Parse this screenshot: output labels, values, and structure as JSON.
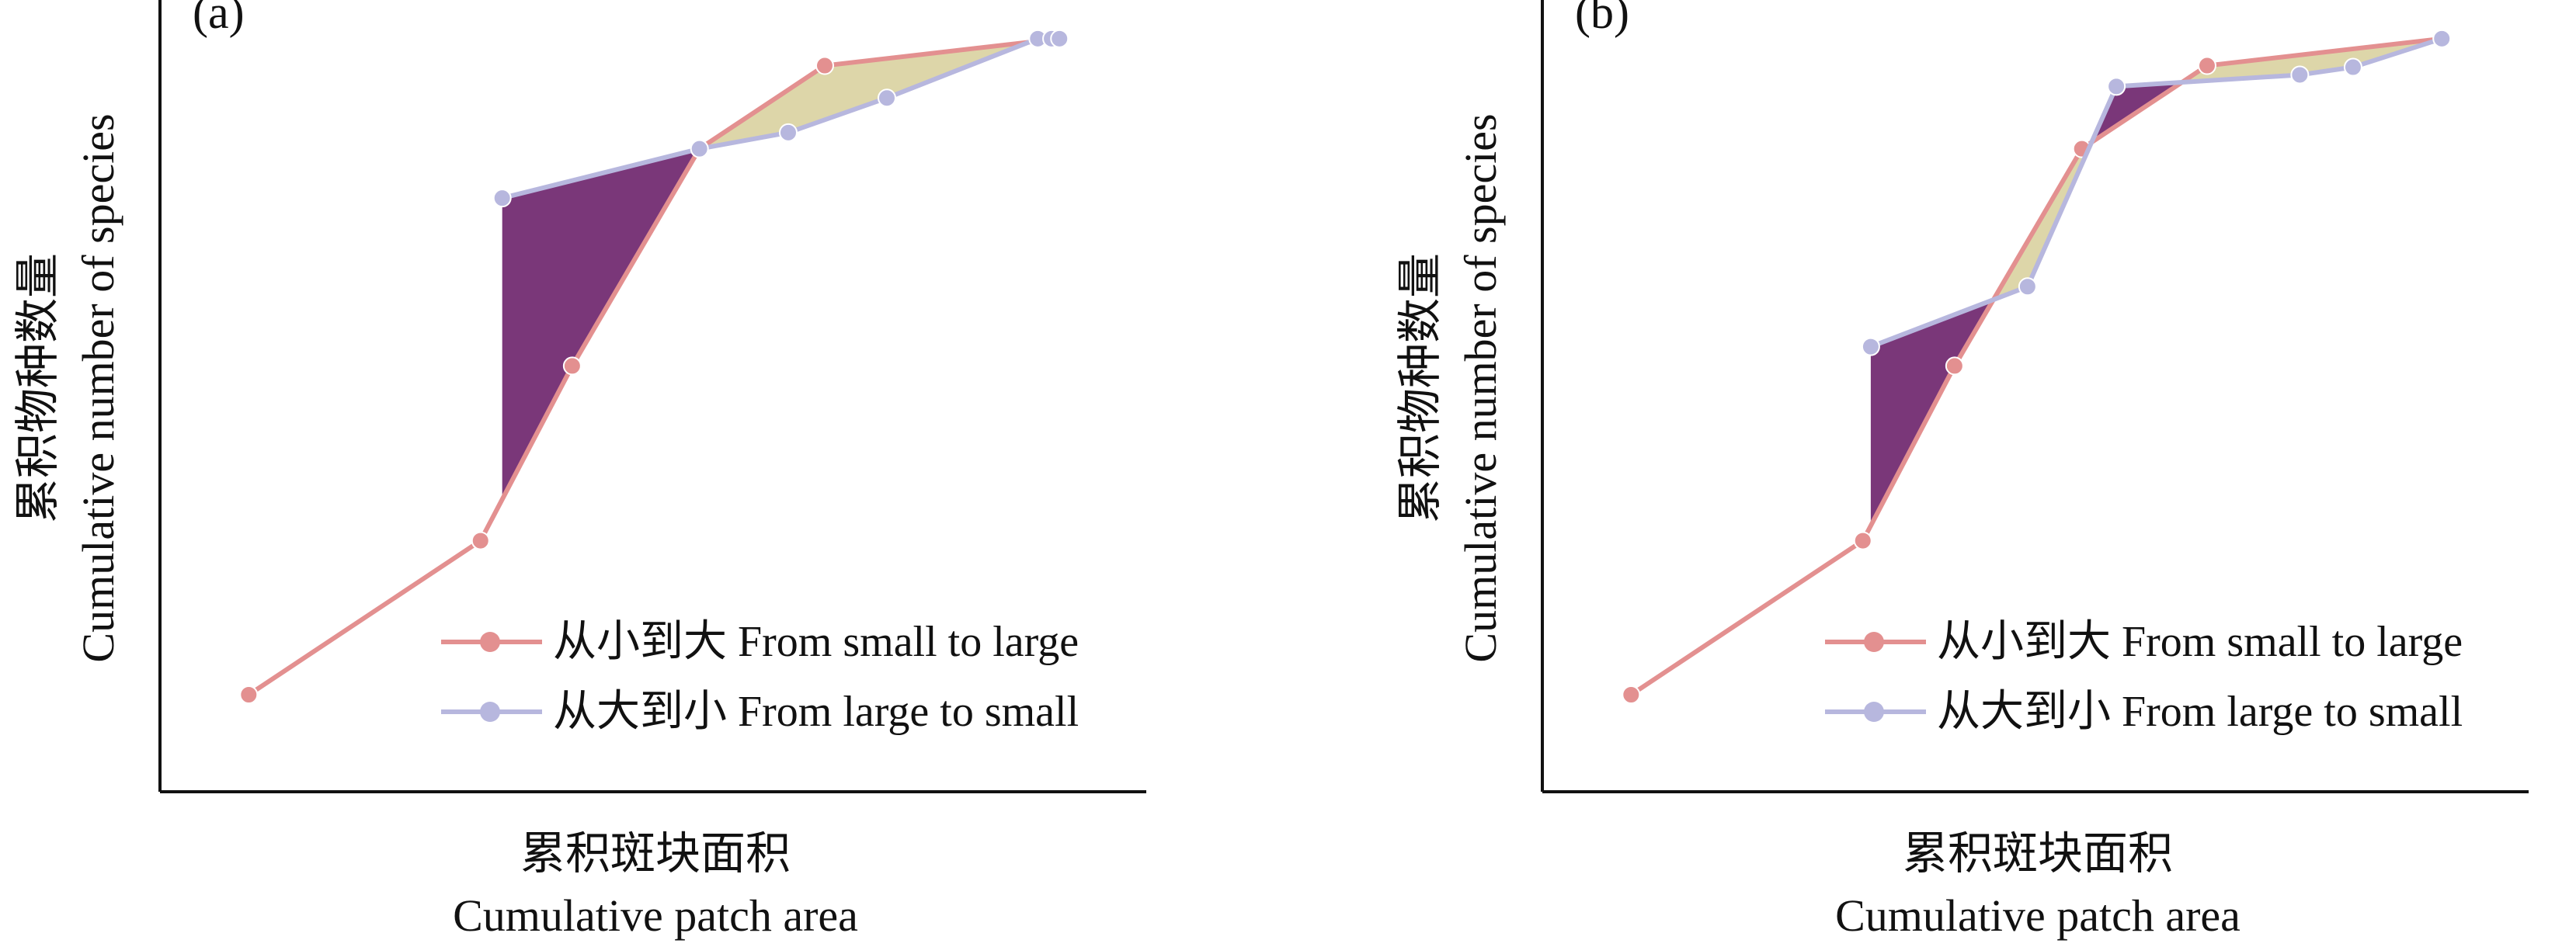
{
  "colors": {
    "small_to_large": "#e39090",
    "large_to_small": "#b7b7de",
    "fill_positive": "#7a3779",
    "fill_negative": "#ddd6a9",
    "axis": "#111111"
  },
  "legend": {
    "small_to_large": "从小到大 From small to large",
    "large_to_small": "从大到小 From large to small"
  },
  "chart_data": [
    {
      "type": "line",
      "panel_label": "(a)",
      "ylabel_cn": "累积物种数量",
      "ylabel_en": "Cumulative number of species",
      "xlabel_cn": "累积斑块面积",
      "xlabel_en": "Cumulative patch area",
      "xlim": [
        0,
        100
      ],
      "ylim": [
        0,
        100
      ],
      "series": [
        {
          "name": "从小到大 From small to large",
          "color_key": "small_to_large",
          "x": [
            9,
            32.5,
            41.8,
            54.7,
            67.4,
            91.2
          ],
          "y": [
            12.6,
            32.6,
            55.3,
            83.5,
            94.3,
            97.8
          ]
        },
        {
          "name": "从大到小 From large to small",
          "color_key": "large_to_small",
          "x": [
            34.7,
            54.7,
            63.7,
            73.7,
            89.0,
            90.4,
            91.2
          ],
          "y": [
            77.1,
            83.5,
            85.6,
            90.1,
            97.8,
            97.8,
            97.8
          ]
        }
      ]
    },
    {
      "type": "line",
      "panel_label": "(b)",
      "ylabel_cn": "累积物种数量",
      "ylabel_en": "Cumulative number of species",
      "xlabel_cn": "累积斑块面积",
      "xlabel_en": "Cumulative patch area",
      "xlim": [
        0,
        100
      ],
      "ylim": [
        0,
        100
      ],
      "series": [
        {
          "name": "从小到大 From small to large",
          "color_key": "small_to_large",
          "x": [
            9,
            32.5,
            41.8,
            54.7,
            67.4,
            91.2
          ],
          "y": [
            12.6,
            32.6,
            55.3,
            83.5,
            94.3,
            97.8
          ]
        },
        {
          "name": "从大到小 From large to small",
          "color_key": "large_to_small",
          "x": [
            33.3,
            49.2,
            58.2,
            76.8,
            82.2,
            91.2
          ],
          "y": [
            57.8,
            65.6,
            91.6,
            93.1,
            94.1,
            97.8
          ]
        }
      ]
    }
  ]
}
